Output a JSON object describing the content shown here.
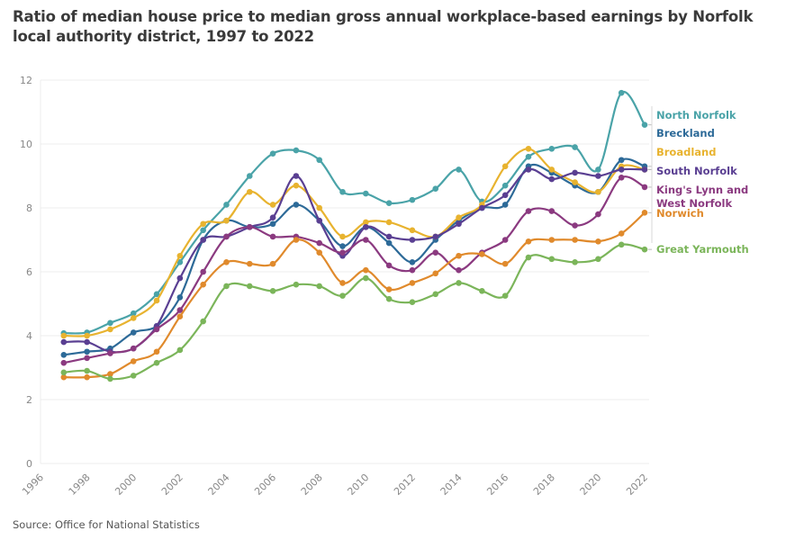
{
  "chart_data": {
    "type": "line",
    "title": "Ratio of median house price to median gross annual workplace-based earnings by Norfolk local authority district, 1997 to 2022",
    "xlabel": "",
    "ylabel": "",
    "xlim": [
      1996,
      2022
    ],
    "ylim": [
      0,
      12
    ],
    "x_ticks": [
      "1996",
      "1998",
      "2000",
      "2002",
      "2004",
      "2006",
      "2008",
      "2010",
      "2012",
      "2014",
      "2016",
      "2018",
      "2020",
      "2022"
    ],
    "y_ticks": [
      "0",
      "2",
      "4",
      "6",
      "8",
      "10",
      "12"
    ],
    "grid": true,
    "legend_placement": "right (direct labels)",
    "x": [
      1997,
      1998,
      1999,
      2000,
      2001,
      2002,
      2003,
      2004,
      2005,
      2006,
      2007,
      2008,
      2009,
      2010,
      2011,
      2012,
      2013,
      2014,
      2015,
      2016,
      2017,
      2018,
      2019,
      2020,
      2021,
      2022
    ],
    "series": [
      {
        "name": "North Norfolk",
        "color": "#4aa3a8",
        "values": [
          4.08,
          4.1,
          4.4,
          4.7,
          5.3,
          6.3,
          7.3,
          8.1,
          9.0,
          9.7,
          9.8,
          9.5,
          8.5,
          8.45,
          8.15,
          8.25,
          8.6,
          9.2,
          8.2,
          8.7,
          9.6,
          9.85,
          9.9,
          9.2,
          11.6,
          10.6
        ]
      },
      {
        "name": "Breckland",
        "color": "#2d6a98",
        "values": [
          3.4,
          3.5,
          3.6,
          4.1,
          4.3,
          5.2,
          7.0,
          7.6,
          7.4,
          7.5,
          8.1,
          7.6,
          6.8,
          7.4,
          6.9,
          6.3,
          7.0,
          7.6,
          8.0,
          8.1,
          9.3,
          9.1,
          8.7,
          8.5,
          9.5,
          9.3
        ]
      },
      {
        "name": "Broadland",
        "color": "#e8b32f",
        "values": [
          4.0,
          4.0,
          4.2,
          4.55,
          5.1,
          6.5,
          7.5,
          7.6,
          8.5,
          8.1,
          8.7,
          8.0,
          7.1,
          7.55,
          7.55,
          7.3,
          7.1,
          7.7,
          8.1,
          9.3,
          9.85,
          9.2,
          8.8,
          8.5,
          9.3,
          9.2
        ]
      },
      {
        "name": "South Norfolk",
        "color": "#5a3f92",
        "values": [
          3.8,
          3.8,
          3.5,
          3.6,
          4.3,
          5.8,
          7.0,
          7.1,
          7.4,
          7.7,
          9.0,
          7.6,
          6.5,
          7.4,
          7.1,
          7.0,
          7.1,
          7.5,
          8.0,
          8.4,
          9.2,
          8.9,
          9.1,
          9.0,
          9.2,
          9.2
        ]
      },
      {
        "name": "King's Lynn and West Norfolk",
        "color": "#8b3a80",
        "values": [
          3.15,
          3.3,
          3.45,
          3.6,
          4.2,
          4.8,
          6.0,
          7.1,
          7.4,
          7.1,
          7.1,
          6.9,
          6.6,
          7.0,
          6.2,
          6.05,
          6.6,
          6.05,
          6.6,
          7.0,
          7.9,
          7.9,
          7.45,
          7.8,
          8.95,
          8.65
        ]
      },
      {
        "name": "Norwich",
        "color": "#e08a2c",
        "values": [
          2.7,
          2.7,
          2.8,
          3.2,
          3.5,
          4.6,
          5.6,
          6.3,
          6.25,
          6.25,
          7.0,
          6.6,
          5.65,
          6.05,
          5.45,
          5.65,
          5.95,
          6.5,
          6.55,
          6.25,
          6.95,
          7.0,
          7.0,
          6.95,
          7.2,
          7.85
        ]
      },
      {
        "name": "Great Yarmouth",
        "color": "#7bb55a",
        "values": [
          2.85,
          2.9,
          2.65,
          2.75,
          3.15,
          3.55,
          4.45,
          5.55,
          5.55,
          5.4,
          5.6,
          5.55,
          5.25,
          5.8,
          5.15,
          5.05,
          5.3,
          5.65,
          5.4,
          5.25,
          6.45,
          6.4,
          6.3,
          6.4,
          6.85,
          6.7
        ]
      }
    ],
    "source": "Source: Office for National Statistics"
  }
}
